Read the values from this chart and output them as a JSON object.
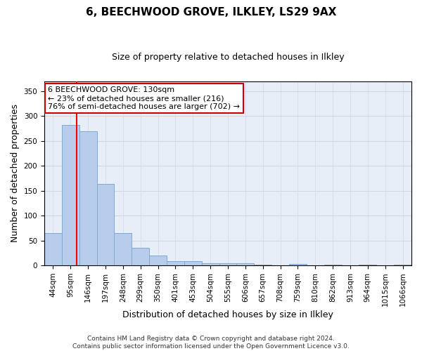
{
  "title": "6, BEECHWOOD GROVE, ILKLEY, LS29 9AX",
  "subtitle": "Size of property relative to detached houses in Ilkley",
  "xlabel": "Distribution of detached houses by size in Ilkley",
  "ylabel": "Number of detached properties",
  "bin_labels": [
    "44sqm",
    "95sqm",
    "146sqm",
    "197sqm",
    "248sqm",
    "299sqm",
    "350sqm",
    "401sqm",
    "453sqm",
    "504sqm",
    "555sqm",
    "606sqm",
    "657sqm",
    "708sqm",
    "759sqm",
    "810sqm",
    "862sqm",
    "913sqm",
    "964sqm",
    "1015sqm",
    "1066sqm"
  ],
  "bar_heights": [
    65,
    282,
    270,
    163,
    65,
    35,
    20,
    8,
    8,
    5,
    5,
    4,
    2,
    0,
    3,
    0,
    2,
    0,
    2,
    0,
    2
  ],
  "bar_color": "#b8cceb",
  "bar_edge_color": "#7baad4",
  "grid_color": "#d0d8e8",
  "background_color": "#e8eef8",
  "red_line_x": 1.35,
  "annotation_line1": "6 BEECHWOOD GROVE: 130sqm",
  "annotation_line2": "← 23% of detached houses are smaller (216)",
  "annotation_line3": "76% of semi-detached houses are larger (702) →",
  "annotation_box_color": "#ffffff",
  "annotation_box_edge": "#cc0000",
  "footer": "Contains HM Land Registry data © Crown copyright and database right 2024.\nContains public sector information licensed under the Open Government Licence v3.0.",
  "ylim": [
    0,
    370
  ],
  "yticks": [
    0,
    50,
    100,
    150,
    200,
    250,
    300,
    350
  ],
  "title_fontsize": 11,
  "subtitle_fontsize": 9,
  "ylabel_fontsize": 9,
  "xlabel_fontsize": 9,
  "tick_fontsize": 7.5,
  "footer_fontsize": 6.5
}
